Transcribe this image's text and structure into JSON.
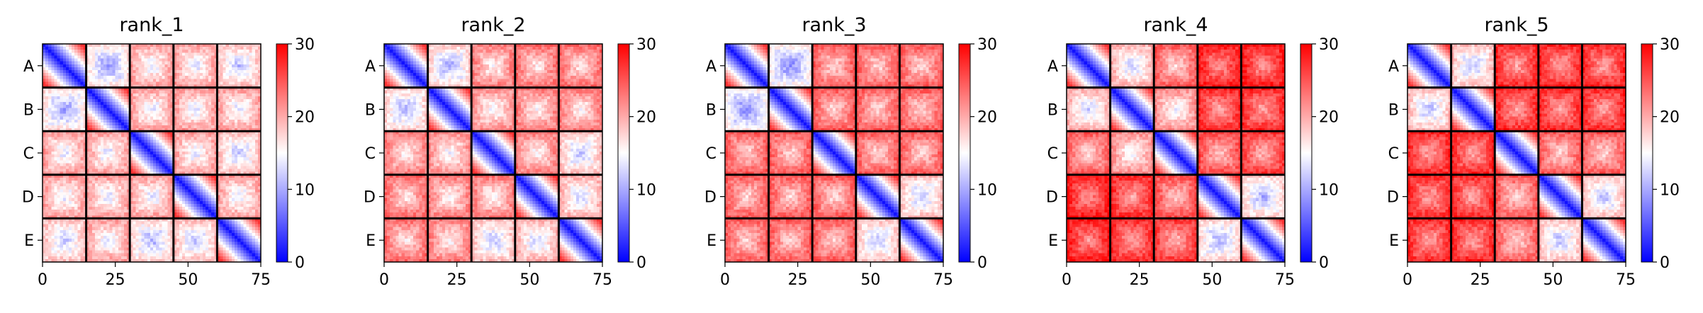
{
  "chart_data": {
    "type": "heatmap",
    "colormap": "bwr",
    "colormap_colors": {
      "low": "#0000ff",
      "mid": "#ffffff",
      "high": "#ff0000"
    },
    "color_range": [
      0,
      30
    ],
    "colorbar_ticks": [
      "0",
      "10",
      "20",
      "30"
    ],
    "x_ticks": [
      "0",
      "25",
      "50",
      "75"
    ],
    "x_range": [
      0,
      75
    ],
    "y_categories": [
      "A",
      "B",
      "C",
      "D",
      "E"
    ],
    "block_size": 15,
    "block_boundary_color": "#000000",
    "panels": [
      {
        "title": "rank_1",
        "block_mean_values": [
          [
            5,
            13,
            17,
            17,
            15
          ],
          [
            13,
            5,
            17,
            17,
            17
          ],
          [
            17,
            17,
            5,
            17,
            15
          ],
          [
            17,
            17,
            17,
            5,
            17
          ],
          [
            15,
            17,
            14,
            15,
            5
          ]
        ]
      },
      {
        "title": "rank_2",
        "block_mean_values": [
          [
            5,
            14,
            19,
            20,
            20
          ],
          [
            14,
            5,
            18,
            19,
            19
          ],
          [
            19,
            18,
            5,
            19,
            15
          ],
          [
            20,
            19,
            19,
            5,
            16
          ],
          [
            20,
            19,
            15,
            16,
            5
          ]
        ]
      },
      {
        "title": "rank_3",
        "block_mean_values": [
          [
            5,
            12,
            21,
            21,
            21
          ],
          [
            12,
            5,
            21,
            21,
            21
          ],
          [
            21,
            21,
            5,
            21,
            21
          ],
          [
            21,
            21,
            21,
            5,
            15
          ],
          [
            21,
            21,
            21,
            15,
            5
          ]
        ]
      },
      {
        "title": "rank_4",
        "block_mean_values": [
          [
            5,
            16,
            21,
            25,
            25
          ],
          [
            16,
            5,
            18,
            24,
            24
          ],
          [
            21,
            18,
            5,
            22,
            23
          ],
          [
            25,
            24,
            22,
            5,
            14
          ],
          [
            25,
            24,
            23,
            14,
            5
          ]
        ]
      },
      {
        "title": "rank_5",
        "block_mean_values": [
          [
            5,
            15,
            24,
            24,
            24
          ],
          [
            15,
            5,
            24,
            24,
            24
          ],
          [
            24,
            24,
            5,
            21,
            21
          ],
          [
            24,
            24,
            21,
            5,
            15
          ],
          [
            24,
            24,
            21,
            15,
            5
          ]
        ]
      }
    ]
  }
}
